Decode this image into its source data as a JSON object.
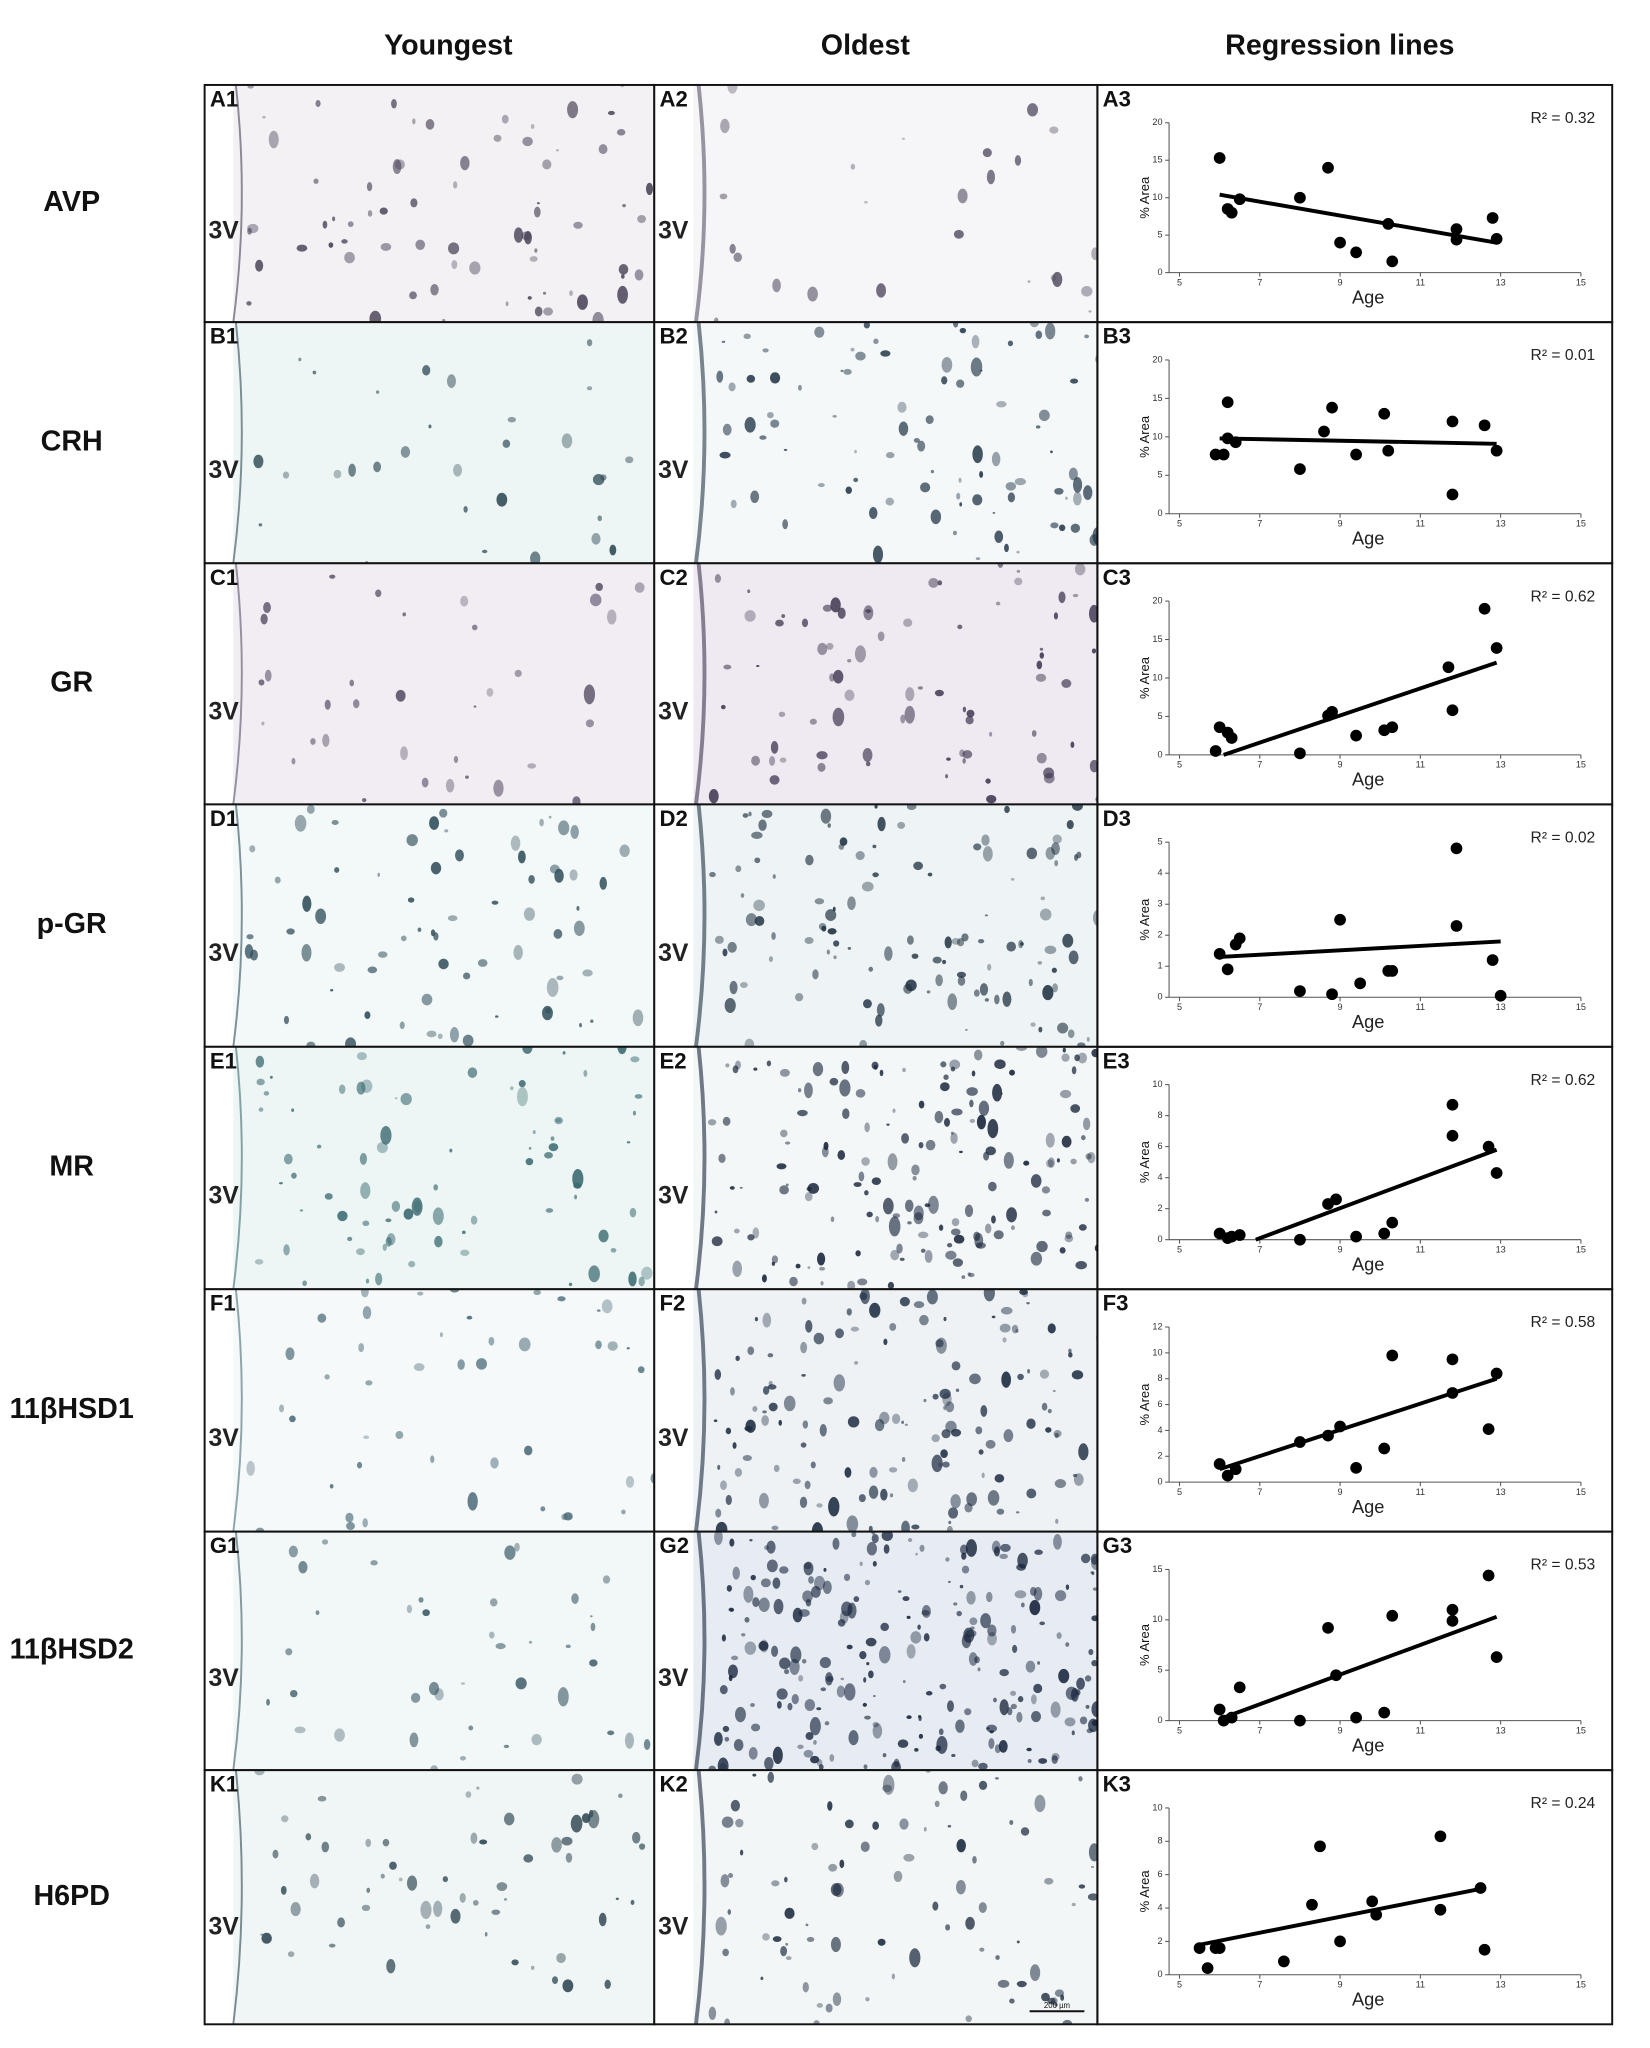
{
  "column_headers": [
    "Youngest",
    "Oldest",
    "Regression lines"
  ],
  "rows": [
    {
      "label": "AVP",
      "panels": [
        "A1",
        "A2",
        "A3"
      ]
    },
    {
      "label": "CRH",
      "panels": [
        "B1",
        "B2",
        "B3"
      ]
    },
    {
      "label": "GR",
      "panels": [
        "C1",
        "C2",
        "C3"
      ]
    },
    {
      "label": "p-GR",
      "panels": [
        "D1",
        "D2",
        "D3"
      ]
    },
    {
      "label": "MR",
      "panels": [
        "E1",
        "E2",
        "E3"
      ]
    },
    {
      "label": "11βHSD1",
      "panels": [
        "F1",
        "F2",
        "F3"
      ]
    },
    {
      "label": "11βHSD2",
      "panels": [
        "G1",
        "G2",
        "G3"
      ]
    },
    {
      "label": "H6PD",
      "panels": [
        "K1",
        "K2",
        "K3"
      ]
    }
  ],
  "ventricle_label": "3V",
  "scale_bar": "200 µm",
  "chart_data": [
    {
      "type": "scatter",
      "annotation": "R² = 0.32",
      "xlabel": "Age",
      "ylabel": "% Area",
      "color": "#000000",
      "x": [
        6.0,
        6.2,
        6.3,
        6.5,
        8.0,
        8.7,
        9.0,
        9.4,
        10.2,
        10.3,
        11.9,
        11.9,
        12.8,
        12.9
      ],
      "values": [
        15.3,
        8.5,
        8,
        9.8,
        10,
        14,
        4,
        2.7,
        6.5,
        1.5,
        5.8,
        4.4,
        7.3,
        4.5
      ],
      "regression": {
        "x": [
          6.0,
          12.9
        ],
        "values": [
          10.4,
          4
        ]
      },
      "xlim": [
        5,
        15
      ],
      "xticks": [
        5,
        7,
        9,
        11,
        13,
        15
      ],
      "ylim": [
        0,
        20
      ],
      "yticks": [
        0,
        5,
        10,
        15,
        20
      ]
    },
    {
      "type": "scatter",
      "annotation": "R² = 0.01",
      "xlabel": "Age",
      "ylabel": "% Area",
      "color": "#000000",
      "x": [
        5.9,
        6.1,
        6.2,
        6.2,
        6.4,
        8.0,
        8.6,
        8.8,
        9.4,
        10.1,
        10.2,
        11.8,
        11.8,
        12.6,
        12.9
      ],
      "values": [
        7.7,
        7.7,
        9.8,
        14.5,
        9.3,
        5.8,
        10.7,
        13.8,
        7.7,
        13,
        8.2,
        12,
        2.5,
        11.5,
        8.2
      ],
      "regression": {
        "x": [
          6.0,
          12.9
        ],
        "values": [
          9.8,
          9.1
        ]
      },
      "xlim": [
        5,
        15
      ],
      "xticks": [
        5,
        7,
        9,
        11,
        13,
        15
      ],
      "ylim": [
        0,
        20
      ],
      "yticks": [
        0,
        5,
        10,
        15,
        20
      ]
    },
    {
      "type": "scatter",
      "annotation": "R² = 0.62",
      "xlabel": "Age",
      "ylabel": "% Area",
      "color": "#000000",
      "x": [
        5.9,
        6.0,
        6.2,
        6.3,
        8.0,
        8.7,
        8.8,
        9.4,
        10.1,
        10.3,
        11.7,
        11.8,
        12.6,
        12.9
      ],
      "values": [
        0.5,
        3.6,
        2.9,
        2.2,
        0.2,
        5.1,
        5.6,
        2.5,
        3.2,
        3.6,
        11.4,
        5.8,
        19,
        13.9
      ],
      "regression": {
        "x": [
          6.1,
          12.9
        ],
        "values": [
          0,
          12
        ]
      },
      "xlim": [
        5,
        15
      ],
      "xticks": [
        5,
        7,
        9,
        11,
        13,
        15
      ],
      "ylim": [
        0,
        20
      ],
      "yticks": [
        0,
        5,
        10,
        15,
        20
      ]
    },
    {
      "type": "scatter",
      "annotation": "R² = 0.02",
      "xlabel": "Age",
      "ylabel": "% Area",
      "color": "#000000",
      "x": [
        6.0,
        6.2,
        6.4,
        6.5,
        8.0,
        8.8,
        9.0,
        9.5,
        10.2,
        10.3,
        11.9,
        11.9,
        12.8,
        13.0
      ],
      "values": [
        1.4,
        0.9,
        1.7,
        1.9,
        0.2,
        0.1,
        2.5,
        0.45,
        0.85,
        0.85,
        4.8,
        2.3,
        1.2,
        0.05
      ],
      "regression": {
        "x": [
          6.0,
          13.0
        ],
        "values": [
          1.3,
          1.8
        ]
      },
      "xlim": [
        5,
        15
      ],
      "xticks": [
        5,
        7,
        9,
        11,
        13,
        15
      ],
      "ylim": [
        0,
        5
      ],
      "yticks": [
        0,
        1,
        2,
        3,
        4,
        5
      ]
    },
    {
      "type": "scatter",
      "annotation": "R² = 0.62",
      "xlabel": "Age",
      "ylabel": "% Area",
      "color": "#000000",
      "x": [
        6.0,
        6.2,
        6.3,
        6.5,
        8.0,
        8.7,
        8.9,
        9.4,
        10.1,
        10.3,
        11.8,
        11.8,
        12.7,
        12.9
      ],
      "values": [
        0.4,
        0.1,
        0.2,
        0.3,
        0,
        2.3,
        2.6,
        0.2,
        0.4,
        1.1,
        8.7,
        6.7,
        6,
        4.3
      ],
      "regression": {
        "x": [
          6.9,
          12.9
        ],
        "values": [
          0,
          5.8
        ]
      },
      "xlim": [
        5,
        15
      ],
      "xticks": [
        5,
        7,
        9,
        11,
        13,
        15
      ],
      "ylim": [
        0,
        10
      ],
      "yticks": [
        0,
        2,
        4,
        6,
        8,
        10
      ]
    },
    {
      "type": "scatter",
      "annotation": "R² = 0.58",
      "xlabel": "Age",
      "ylabel": "% Area",
      "color": "#000000",
      "x": [
        6.0,
        6.2,
        6.4,
        8.0,
        8.7,
        9.0,
        9.4,
        10.1,
        10.3,
        11.8,
        11.8,
        12.7,
        12.9
      ],
      "values": [
        1.4,
        0.5,
        1.0,
        3.1,
        3.6,
        4.3,
        1.1,
        2.6,
        9.8,
        9.5,
        6.9,
        4.1,
        8.4
      ],
      "regression": {
        "x": [
          6.0,
          12.9
        ],
        "values": [
          1.0,
          8.0
        ]
      },
      "xlim": [
        5,
        15
      ],
      "xticks": [
        5,
        7,
        9,
        11,
        13,
        15
      ],
      "ylim": [
        0,
        12
      ],
      "yticks": [
        0,
        2,
        4,
        6,
        8,
        10,
        12
      ]
    },
    {
      "type": "scatter",
      "annotation": "R² = 0.53",
      "xlabel": "Age",
      "ylabel": "% Area",
      "color": "#000000",
      "x": [
        6.0,
        6.1,
        6.3,
        6.5,
        8.0,
        8.7,
        8.9,
        9.4,
        10.1,
        10.3,
        11.8,
        11.8,
        12.7,
        12.9
      ],
      "values": [
        1.1,
        0,
        0.3,
        3.3,
        0,
        9.2,
        4.5,
        0.3,
        0.8,
        10.4,
        11,
        9.9,
        14.4,
        6.3
      ],
      "regression": {
        "x": [
          6.1,
          12.9
        ],
        "values": [
          0.3,
          10.3
        ]
      },
      "xlim": [
        5,
        15
      ],
      "xticks": [
        5,
        7,
        9,
        11,
        13,
        15
      ],
      "ylim": [
        0,
        15
      ],
      "yticks": [
        0,
        5,
        10,
        15
      ]
    },
    {
      "type": "scatter",
      "annotation": "R² = 0.24",
      "xlabel": "Age",
      "ylabel": "% Area",
      "color": "#000000",
      "x": [
        5.5,
        5.7,
        5.9,
        6.0,
        7.6,
        8.3,
        8.5,
        9.0,
        9.8,
        9.9,
        11.5,
        11.5,
        12.5,
        12.6
      ],
      "values": [
        1.6,
        0.4,
        1.6,
        1.6,
        0.8,
        4.2,
        7.7,
        2.0,
        4.4,
        3.6,
        3.9,
        8.3,
        5.2,
        1.5
      ],
      "regression": {
        "x": [
          5.5,
          12.6
        ],
        "values": [
          1.8,
          5.2
        ]
      },
      "xlim": [
        5,
        15
      ],
      "xticks": [
        5,
        7,
        9,
        11,
        13,
        15
      ],
      "ylim": [
        0,
        10
      ],
      "yticks": [
        0,
        2,
        4,
        6,
        8,
        10
      ]
    }
  ]
}
